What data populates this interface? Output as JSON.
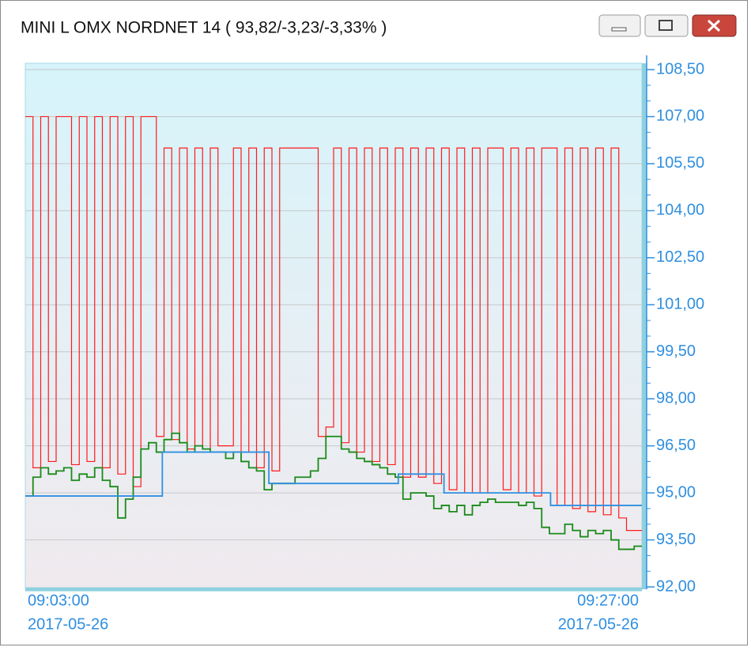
{
  "window": {
    "title": "MINI L OMX NORDNET 14 ( 93,82/-3,23/-3,33% )"
  },
  "chart_data": {
    "type": "line",
    "step": true,
    "grid": true,
    "x_labels": [
      {
        "time": "09:03:00",
        "date": "2017-05-26"
      },
      {
        "time": "09:27:00",
        "date": "2017-05-26"
      }
    ],
    "ylim": [
      92,
      108.5
    ],
    "yticks": [
      {
        "value": 92,
        "label": "92,00"
      },
      {
        "value": 93.5,
        "label": "93,50"
      },
      {
        "value": 95,
        "label": "95,00"
      },
      {
        "value": 96.5,
        "label": "96,50"
      },
      {
        "value": 98,
        "label": "98,00"
      },
      {
        "value": 99.5,
        "label": "99,50"
      },
      {
        "value": 101,
        "label": "101,00"
      },
      {
        "value": 102.5,
        "label": "102,50"
      },
      {
        "value": 104,
        "label": "104,00"
      },
      {
        "value": 105.5,
        "label": "105,50"
      },
      {
        "value": 107,
        "label": "107,00"
      },
      {
        "value": 108.5,
        "label": "108,50"
      }
    ],
    "series": [
      {
        "color": "#ff1a1a",
        "values": [
          107,
          95.8,
          107,
          96.0,
          107,
          107,
          95.9,
          107,
          96.0,
          107,
          95.8,
          107,
          95.6,
          107,
          95.2,
          107,
          107,
          96.8,
          106,
          96.7,
          106,
          96.4,
          106,
          96.4,
          106,
          96.5,
          96.5,
          106,
          96.3,
          106,
          95.8,
          106,
          95.7,
          106,
          106,
          106,
          106,
          106,
          96.8,
          97.1,
          106,
          96.6,
          106,
          96.3,
          106,
          96.0,
          106,
          95.9,
          106,
          95.5,
          106,
          95.5,
          106,
          95.3,
          106,
          95.1,
          106,
          95.0,
          106,
          95.0,
          106,
          106,
          95.1,
          106,
          95.0,
          106,
          94.9,
          106,
          106,
          94.6,
          106,
          94.5,
          106,
          94.4,
          106,
          94.3,
          106,
          94.2,
          93.8,
          93.8
        ]
      },
      {
        "color": "#1a8a1a",
        "values": [
          94.9,
          95.5,
          95.8,
          95.6,
          95.7,
          95.8,
          95.4,
          95.6,
          95.5,
          95.8,
          95.4,
          95.2,
          94.2,
          94.8,
          95.5,
          96.4,
          96.6,
          96.3,
          96.7,
          96.9,
          96.6,
          96.3,
          96.5,
          96.4,
          96.3,
          96.3,
          96.1,
          96.3,
          96.0,
          95.8,
          95.7,
          95.1,
          95.3,
          95.3,
          95.3,
          95.5,
          95.5,
          95.7,
          96.1,
          96.8,
          96.8,
          96.4,
          96.3,
          96.1,
          96.0,
          95.9,
          95.8,
          95.6,
          95.5,
          94.8,
          95.0,
          95.0,
          94.9,
          94.5,
          94.6,
          94.4,
          94.6,
          94.3,
          94.6,
          94.7,
          94.8,
          94.7,
          94.7,
          94.7,
          94.6,
          94.7,
          94.5,
          93.9,
          93.7,
          93.7,
          94.0,
          93.8,
          93.6,
          93.8,
          93.7,
          93.8,
          93.5,
          93.2,
          93.2,
          93.3
        ]
      },
      {
        "color": "#2f8fe0",
        "values": [
          94.9,
          94.9,
          94.9,
          94.9,
          94.9,
          94.9,
          94.9,
          94.9,
          94.9,
          94.9,
          94.9,
          94.9,
          94.9,
          94.9,
          94.9,
          94.9,
          94.9,
          94.9,
          96.3,
          96.3,
          96.3,
          96.3,
          96.3,
          96.3,
          96.3,
          96.3,
          96.3,
          96.3,
          96.3,
          96.3,
          96.3,
          96.3,
          95.3,
          95.3,
          95.3,
          95.3,
          95.3,
          95.3,
          95.3,
          95.3,
          95.3,
          95.3,
          95.3,
          95.3,
          95.3,
          95.3,
          95.3,
          95.3,
          95.3,
          95.6,
          95.6,
          95.6,
          95.6,
          95.6,
          95.6,
          95.0,
          95.0,
          95.0,
          95.0,
          95.0,
          95.0,
          95.0,
          95.0,
          95.0,
          95.0,
          95.0,
          95.0,
          95.0,
          95.0,
          94.6,
          94.6,
          94.6,
          94.6,
          94.6,
          94.6,
          94.6,
          94.6,
          94.6,
          94.6,
          94.6,
          94.6
        ]
      }
    ]
  }
}
